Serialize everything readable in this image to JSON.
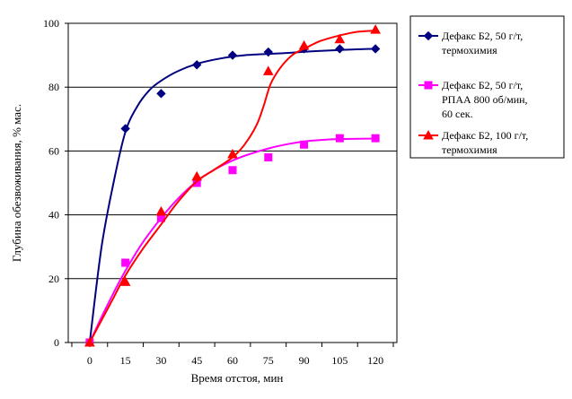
{
  "chart_data": {
    "type": "scatter",
    "title": "",
    "xlabel": "Время отстоя, мин",
    "ylabel": "Глубина обезвоживания, % мас.",
    "xlim": [
      -9,
      129
    ],
    "ylim": [
      0,
      100
    ],
    "x_ticks": [
      0,
      15,
      30,
      45,
      60,
      75,
      90,
      105,
      120
    ],
    "x_tick_labels": [
      "0",
      "15",
      "30",
      "45",
      "60",
      "75",
      "90",
      "105",
      "120"
    ],
    "y_ticks": [
      0,
      20,
      40,
      60,
      80,
      100
    ],
    "y_tick_labels": [
      "0",
      "20",
      "40",
      "60",
      "80",
      "100"
    ],
    "grid": "horizontal",
    "legend_position": "right",
    "series": [
      {
        "name": "Дефакс Б2, 50 г/т, термохимия",
        "legend_lines": [
          "Дефакс Б2, 50 г/т,",
          "термохимия"
        ],
        "color": "#000080",
        "marker": "diamond",
        "x": [
          0,
          15,
          30,
          45,
          60,
          75,
          90,
          105,
          120
        ],
        "y": [
          0,
          67,
          78,
          87,
          90,
          91,
          92,
          92,
          92
        ],
        "trend": [
          [
            0,
            0
          ],
          [
            5,
            30
          ],
          [
            10,
            50
          ],
          [
            15,
            66
          ],
          [
            20,
            74
          ],
          [
            25,
            79
          ],
          [
            30,
            82
          ],
          [
            37,
            85
          ],
          [
            45,
            87.3
          ],
          [
            55,
            89
          ],
          [
            65,
            90
          ],
          [
            80,
            90.6
          ],
          [
            95,
            91.3
          ],
          [
            110,
            91.8
          ],
          [
            120,
            92
          ]
        ]
      },
      {
        "name": "Дефакс Б2, 50 г/т, РПАА 800 об/мин, 60 сек.",
        "legend_lines": [
          "Дефакс Б2, 50 г/т,",
          "РПАА 800 об/мин,",
          "60 сек."
        ],
        "color": "#FF00FF",
        "marker": "square",
        "x": [
          0,
          15,
          30,
          45,
          60,
          75,
          90,
          105,
          120
        ],
        "y": [
          0,
          25,
          39,
          50,
          54,
          58,
          62,
          64,
          64
        ],
        "trend": [
          [
            0,
            0
          ],
          [
            5,
            8
          ],
          [
            10,
            15.5
          ],
          [
            15,
            22.5
          ],
          [
            22,
            31
          ],
          [
            30,
            39
          ],
          [
            37,
            45
          ],
          [
            45,
            50.5
          ],
          [
            52,
            54
          ],
          [
            60,
            57
          ],
          [
            67,
            59
          ],
          [
            75,
            60.8
          ],
          [
            82,
            62
          ],
          [
            90,
            63
          ],
          [
            100,
            63.6
          ],
          [
            110,
            63.8
          ],
          [
            120,
            63.9
          ]
        ]
      },
      {
        "name": "Дефакс Б2, 100 г/т, термохимия",
        "legend_lines": [
          "Дефакс Б2, 100 г/т,",
          "термохимия"
        ],
        "color": "#FF0000",
        "marker": "triangle",
        "x": [
          0,
          15,
          30,
          45,
          60,
          75,
          90,
          105,
          120
        ],
        "y": [
          0,
          19,
          41,
          52,
          59,
          85,
          93,
          95,
          98
        ],
        "trend": [
          [
            0,
            0
          ],
          [
            5,
            7
          ],
          [
            10,
            14
          ],
          [
            15,
            21
          ],
          [
            22,
            29
          ],
          [
            30,
            37
          ],
          [
            37,
            44
          ],
          [
            45,
            50.5
          ],
          [
            52,
            54
          ],
          [
            60,
            58
          ],
          [
            65,
            62
          ],
          [
            70,
            68
          ],
          [
            73,
            74
          ],
          [
            76,
            81
          ],
          [
            80,
            86
          ],
          [
            85,
            90
          ],
          [
            90,
            92
          ],
          [
            97,
            94.5
          ],
          [
            105,
            96.2
          ],
          [
            112,
            97.3
          ],
          [
            120,
            97.7
          ]
        ]
      }
    ]
  }
}
